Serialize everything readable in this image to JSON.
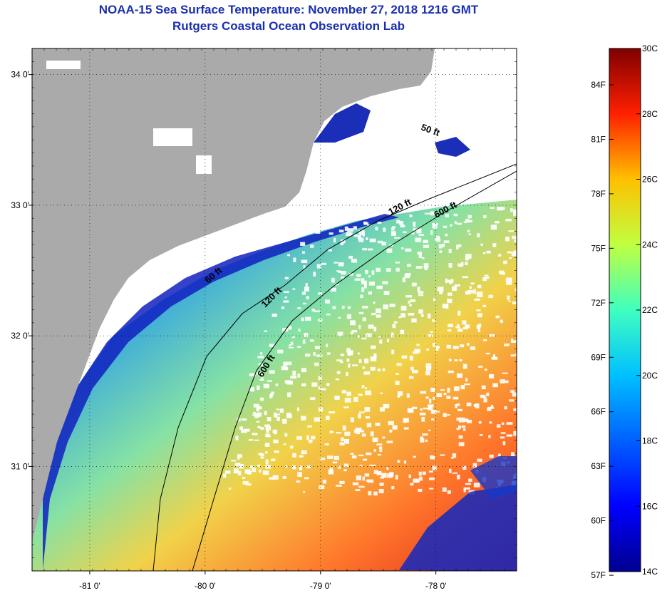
{
  "title": {
    "line1": "NOAA-15 Sea Surface Temperature:  November 27, 2018 1216 GMT",
    "line2": "Rutgers Coastal Ocean Observation Lab"
  },
  "map": {
    "lon_range": [
      -81.5,
      -77.3
    ],
    "lat_range": [
      30.2,
      34.2
    ],
    "lon_ticks": [
      {
        "value": -81,
        "label": "-81 0'"
      },
      {
        "value": -80,
        "label": "-80 0'"
      },
      {
        "value": -79,
        "label": "-79 0'"
      },
      {
        "value": -78,
        "label": "-78 0'"
      }
    ],
    "lat_ticks": [
      {
        "value": 34,
        "label": "34 0'"
      },
      {
        "value": 33,
        "label": "33 0'"
      },
      {
        "value": 32,
        "label": "32 0'"
      },
      {
        "value": 31,
        "label": "31 0'"
      }
    ],
    "contour_labels": [
      "50 ft",
      "120 ft",
      "600 ft",
      "60 ft",
      "120 ft",
      "600 ft"
    ],
    "colors": {
      "land": "#aaaaaa",
      "cloud": "#ffffff",
      "gridline": "#000000"
    }
  },
  "colorbar": {
    "min_c": 14,
    "max_c": 30,
    "celsius_labels": [
      "30C",
      "28C",
      "26C",
      "24C",
      "22C",
      "20C",
      "18C",
      "16C",
      "14C"
    ],
    "fahrenheit_labels": [
      "84F",
      "81F",
      "78F",
      "75F",
      "72F",
      "69F",
      "66F",
      "63F",
      "60F",
      "57F"
    ],
    "colors": [
      "#00008f",
      "#0000ff",
      "#0080ff",
      "#00ffff",
      "#80ff80",
      "#ffff00",
      "#ff8000",
      "#ff0000",
      "#800000"
    ]
  }
}
